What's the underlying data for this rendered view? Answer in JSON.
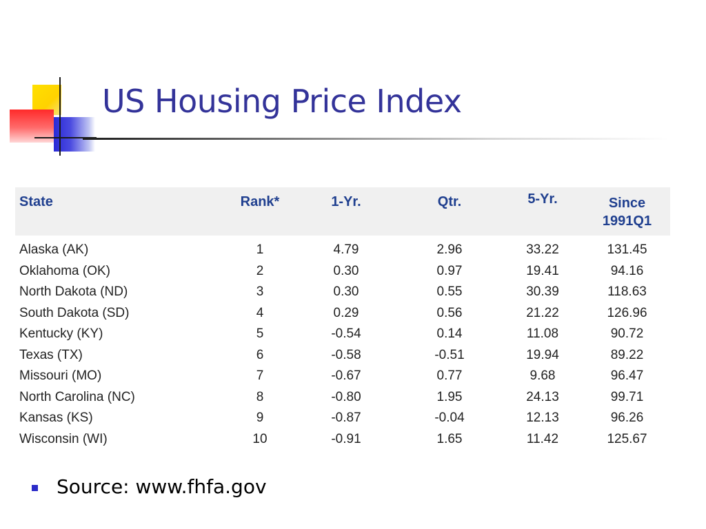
{
  "slide": {
    "title": "US Housing Price Index",
    "title_color": "#333399"
  },
  "table": {
    "headers": {
      "state": "State",
      "rank": "Rank*",
      "one_yr": "1-Yr.",
      "qtr": "Qtr.",
      "five_yr": "5-Yr.",
      "since_line1": "Since",
      "since_line2": "1991Q1"
    },
    "header_color": "#1f3f8f",
    "header_bg": "#f0f0f0",
    "rows": [
      {
        "state": "Alaska (AK)",
        "rank": "1",
        "one_yr": "4.79",
        "qtr": "2.96",
        "five_yr": "33.22",
        "since": "131.45"
      },
      {
        "state": "Oklahoma (OK)",
        "rank": "2",
        "one_yr": "0.30",
        "qtr": "0.97",
        "five_yr": "19.41",
        "since": "94.16"
      },
      {
        "state": "North Dakota (ND)",
        "rank": "3",
        "one_yr": "0.30",
        "qtr": "0.55",
        "five_yr": "30.39",
        "since": "118.63"
      },
      {
        "state": "South Dakota (SD)",
        "rank": "4",
        "one_yr": "0.29",
        "qtr": "0.56",
        "five_yr": "21.22",
        "since": "126.96"
      },
      {
        "state": "Kentucky (KY)",
        "rank": "5",
        "one_yr": "-0.54",
        "qtr": "0.14",
        "five_yr": "11.08",
        "since": "90.72"
      },
      {
        "state": "Texas (TX)",
        "rank": "6",
        "one_yr": "-0.58",
        "qtr": "-0.51",
        "five_yr": "19.94",
        "since": "89.22"
      },
      {
        "state": "Missouri (MO)",
        "rank": "7",
        "one_yr": "-0.67",
        "qtr": "0.77",
        "five_yr": "9.68",
        "since": "96.47"
      },
      {
        "state": "North Carolina (NC)",
        "rank": "8",
        "one_yr": "-0.80",
        "qtr": "1.95",
        "five_yr": "24.13",
        "since": "99.71"
      },
      {
        "state": "Kansas (KS)",
        "rank": "9",
        "one_yr": "-0.87",
        "qtr": "-0.04",
        "five_yr": "12.13",
        "since": "96.26"
      },
      {
        "state": "Wisconsin (WI)",
        "rank": "10",
        "one_yr": "-0.91",
        "qtr": "1.65",
        "five_yr": "11.42",
        "since": "125.67"
      }
    ]
  },
  "bullets": [
    {
      "text": "Source: www.fhfa.gov",
      "bullet_color": "#2b2bc8"
    }
  ],
  "decor": {
    "logo_colors": [
      "#ffd200",
      "#ff2a2a",
      "#2b2bd6"
    ]
  }
}
